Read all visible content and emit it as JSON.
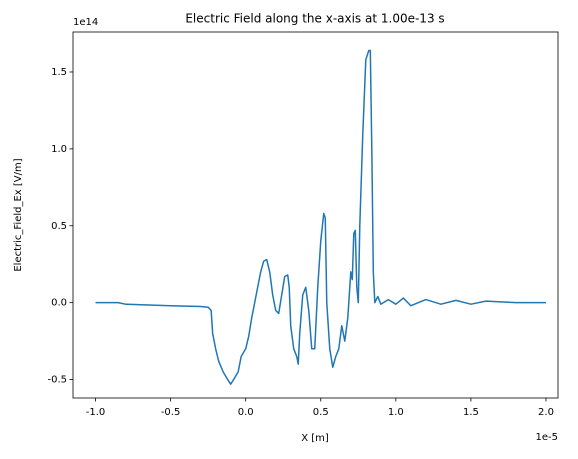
{
  "chart_data": {
    "type": "line",
    "title": "Electric Field along the x-axis at 1.00e-13 s",
    "x_label": "X [m]",
    "y_label": "Electric_Field_Ex [V/m]",
    "x_offset_text": "1e-5",
    "y_offset_text": "1e14",
    "xlim": [
      -1.15,
      2.08
    ],
    "ylim": [
      -0.62,
      1.76
    ],
    "xticks": [
      {
        "value": -1.0,
        "label": "-1.0"
      },
      {
        "value": -0.5,
        "label": "-0.5"
      },
      {
        "value": 0,
        "label": "0.0"
      },
      {
        "value": 0.5,
        "label": "0.5"
      },
      {
        "value": 1.0,
        "label": "1.0"
      },
      {
        "value": 1.5,
        "label": "1.5"
      },
      {
        "value": 2.0,
        "label": "2.0"
      }
    ],
    "yticks": [
      {
        "value": -0.5,
        "label": "-0.5"
      },
      {
        "value": 0,
        "label": "0.0"
      },
      {
        "value": 0.5,
        "label": "0.5"
      },
      {
        "value": 1.0,
        "label": "1.0"
      },
      {
        "value": 1.5,
        "label": "1.5"
      }
    ],
    "grid": false,
    "series": [
      {
        "color": "#1f77b4",
        "x": [
          -1.0,
          -0.85,
          -0.8,
          -0.5,
          -0.3,
          -0.25,
          -0.23,
          -0.22,
          -0.2,
          -0.18,
          -0.15,
          -0.12,
          -0.1,
          -0.08,
          -0.05,
          -0.03,
          0,
          0.02,
          0.04,
          0.06,
          0.08,
          0.1,
          0.12,
          0.14,
          0.16,
          0.18,
          0.2,
          0.22,
          0.24,
          0.26,
          0.28,
          0.29,
          0.3,
          0.32,
          0.34,
          0.35,
          0.36,
          0.38,
          0.4,
          0.42,
          0.44,
          0.46,
          0.48,
          0.5,
          0.52,
          0.53,
          0.54,
          0.56,
          0.58,
          0.6,
          0.62,
          0.64,
          0.66,
          0.68,
          0.7,
          0.71,
          0.72,
          0.73,
          0.74,
          0.75,
          0.76,
          0.78,
          0.8,
          0.82,
          0.83,
          0.84,
          0.85,
          0.86,
          0.88,
          0.9,
          0.95,
          1.0,
          1.05,
          1.1,
          1.2,
          1.3,
          1.4,
          1.5,
          1.6,
          1.7,
          1.8,
          2.0
        ],
        "values": [
          0,
          0,
          -0.01,
          -0.02,
          -0.025,
          -0.03,
          -0.05,
          -0.2,
          -0.3,
          -0.38,
          -0.45,
          -0.5,
          -0.53,
          -0.5,
          -0.45,
          -0.35,
          -0.3,
          -0.22,
          -0.1,
          0,
          0.1,
          0.2,
          0.27,
          0.28,
          0.2,
          0.05,
          -0.05,
          -0.07,
          0.05,
          0.17,
          0.18,
          0.1,
          -0.15,
          -0.3,
          -0.35,
          -0.4,
          -0.2,
          0.05,
          0.1,
          -0.05,
          -0.3,
          -0.3,
          0.1,
          0.4,
          0.58,
          0.55,
          0,
          -0.3,
          -0.42,
          -0.35,
          -0.3,
          -0.15,
          -0.25,
          -0.1,
          0.2,
          0.15,
          0.45,
          0.47,
          0.1,
          0,
          0.5,
          1.1,
          1.58,
          1.64,
          1.64,
          1.0,
          0.2,
          0,
          0.04,
          -0.01,
          0.02,
          -0.01,
          0.03,
          -0.02,
          0.02,
          -0.01,
          0.015,
          -0.01,
          0.01,
          0.005,
          0,
          0
        ]
      }
    ]
  }
}
